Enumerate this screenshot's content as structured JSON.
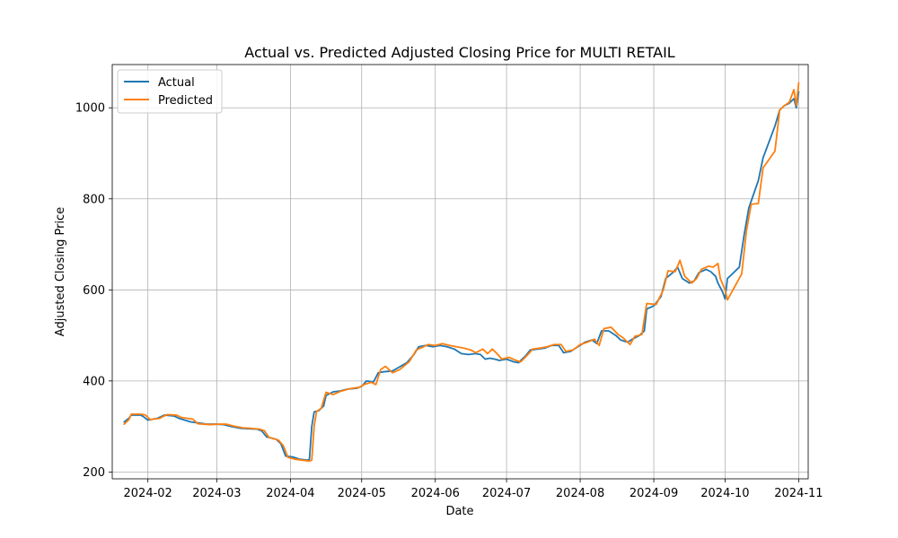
{
  "chart_data": {
    "type": "line",
    "title": "Actual vs. Predicted Adjusted Closing Price for MULTI RETAIL",
    "xlabel": "Date",
    "ylabel": "Adjusted Closing Price",
    "xlim": [
      "2024-01-17",
      "2024-11-05"
    ],
    "ylim": [
      185,
      1095
    ],
    "xticks": [
      "2024-02-01",
      "2024-03-01",
      "2024-04-01",
      "2024-05-01",
      "2024-06-01",
      "2024-07-01",
      "2024-08-01",
      "2024-09-01",
      "2024-10-01",
      "2024-11-01"
    ],
    "xtick_labels": [
      "2024-02",
      "2024-03",
      "2024-04",
      "2024-05",
      "2024-06",
      "2024-07",
      "2024-08",
      "2024-09",
      "2024-10",
      "2024-11"
    ],
    "yticks": [
      200,
      400,
      600,
      800,
      1000
    ],
    "grid": true,
    "legend_position": "top-left",
    "series": [
      {
        "name": "Actual",
        "color": "#1f77b4",
        "points": [
          [
            "2024-01-22",
            310
          ],
          [
            "2024-01-24",
            318
          ],
          [
            "2024-01-25",
            325
          ],
          [
            "2024-01-29",
            325
          ],
          [
            "2024-01-30",
            322
          ],
          [
            "2024-02-01",
            314
          ],
          [
            "2024-02-05",
            318
          ],
          [
            "2024-02-08",
            325
          ],
          [
            "2024-02-12",
            323
          ],
          [
            "2024-02-14",
            318
          ],
          [
            "2024-02-19",
            310
          ],
          [
            "2024-02-22",
            308
          ],
          [
            "2024-02-26",
            305
          ],
          [
            "2024-03-01",
            305
          ],
          [
            "2024-03-04",
            304
          ],
          [
            "2024-03-07",
            300
          ],
          [
            "2024-03-11",
            296
          ],
          [
            "2024-03-14",
            295
          ],
          [
            "2024-03-18",
            294
          ],
          [
            "2024-03-20",
            290
          ],
          [
            "2024-03-22",
            277
          ],
          [
            "2024-03-26",
            272
          ],
          [
            "2024-03-28",
            262
          ],
          [
            "2024-03-30",
            235
          ],
          [
            "2024-04-02",
            233
          ],
          [
            "2024-04-05",
            228
          ],
          [
            "2024-04-08",
            226
          ],
          [
            "2024-04-09",
            227
          ],
          [
            "2024-04-10",
            300
          ],
          [
            "2024-04-11",
            332
          ],
          [
            "2024-04-13",
            335
          ],
          [
            "2024-04-15",
            345
          ],
          [
            "2024-04-16",
            368
          ],
          [
            "2024-04-19",
            376
          ],
          [
            "2024-04-22",
            378
          ],
          [
            "2024-04-25",
            382
          ],
          [
            "2024-04-29",
            384
          ],
          [
            "2024-05-01",
            388
          ],
          [
            "2024-05-03",
            400
          ],
          [
            "2024-05-06",
            398
          ],
          [
            "2024-05-08",
            418
          ],
          [
            "2024-05-10",
            420
          ],
          [
            "2024-05-14",
            422
          ],
          [
            "2024-05-16",
            428
          ],
          [
            "2024-05-20",
            440
          ],
          [
            "2024-05-23",
            458
          ],
          [
            "2024-05-25",
            475
          ],
          [
            "2024-05-28",
            478
          ],
          [
            "2024-05-31",
            475
          ],
          [
            "2024-06-03",
            478
          ],
          [
            "2024-06-06",
            475
          ],
          [
            "2024-06-09",
            470
          ],
          [
            "2024-06-12",
            460
          ],
          [
            "2024-06-15",
            458
          ],
          [
            "2024-06-18",
            460
          ],
          [
            "2024-06-20",
            458
          ],
          [
            "2024-06-22",
            448
          ],
          [
            "2024-06-24",
            450
          ],
          [
            "2024-06-26",
            448
          ],
          [
            "2024-06-28",
            445
          ],
          [
            "2024-07-01",
            448
          ],
          [
            "2024-07-04",
            442
          ],
          [
            "2024-07-06",
            440
          ],
          [
            "2024-07-09",
            455
          ],
          [
            "2024-07-11",
            468
          ],
          [
            "2024-07-14",
            470
          ],
          [
            "2024-07-17",
            472
          ],
          [
            "2024-07-20",
            478
          ],
          [
            "2024-07-23",
            478
          ],
          [
            "2024-07-25",
            462
          ],
          [
            "2024-07-28",
            465
          ],
          [
            "2024-07-31",
            475
          ],
          [
            "2024-08-03",
            485
          ],
          [
            "2024-08-06",
            490
          ],
          [
            "2024-08-08",
            482
          ],
          [
            "2024-08-10",
            510
          ],
          [
            "2024-08-13",
            510
          ],
          [
            "2024-08-16",
            500
          ],
          [
            "2024-08-18",
            490
          ],
          [
            "2024-08-21",
            485
          ],
          [
            "2024-08-23",
            492
          ],
          [
            "2024-08-26",
            500
          ],
          [
            "2024-08-28",
            510
          ],
          [
            "2024-08-29",
            558
          ],
          [
            "2024-09-01",
            565
          ],
          [
            "2024-09-04",
            585
          ],
          [
            "2024-09-06",
            625
          ],
          [
            "2024-09-09",
            638
          ],
          [
            "2024-09-11",
            650
          ],
          [
            "2024-09-13",
            625
          ],
          [
            "2024-09-16",
            615
          ],
          [
            "2024-09-18",
            620
          ],
          [
            "2024-09-20",
            638
          ],
          [
            "2024-09-23",
            645
          ],
          [
            "2024-09-25",
            640
          ],
          [
            "2024-09-27",
            630
          ],
          [
            "2024-09-28",
            615
          ],
          [
            "2024-09-30",
            595
          ],
          [
            "2024-10-01",
            580
          ],
          [
            "2024-10-02",
            625
          ],
          [
            "2024-10-07",
            650
          ],
          [
            "2024-10-09",
            720
          ],
          [
            "2024-10-11",
            780
          ],
          [
            "2024-10-15",
            840
          ],
          [
            "2024-10-17",
            890
          ],
          [
            "2024-10-22",
            960
          ],
          [
            "2024-10-24",
            995
          ],
          [
            "2024-10-26",
            1005
          ],
          [
            "2024-10-28",
            1010
          ],
          [
            "2024-10-30",
            1020
          ],
          [
            "2024-10-31",
            1000
          ],
          [
            "2024-11-01",
            1035
          ]
        ]
      },
      {
        "name": "Predicted",
        "color": "#ff7f0e",
        "points": [
          [
            "2024-01-22",
            305
          ],
          [
            "2024-01-24",
            315
          ],
          [
            "2024-01-25",
            327
          ],
          [
            "2024-01-29",
            327
          ],
          [
            "2024-01-31",
            325
          ],
          [
            "2024-02-02",
            315
          ],
          [
            "2024-02-06",
            318
          ],
          [
            "2024-02-09",
            326
          ],
          [
            "2024-02-13",
            325
          ],
          [
            "2024-02-15",
            320
          ],
          [
            "2024-02-20",
            316
          ],
          [
            "2024-02-22",
            306
          ],
          [
            "2024-02-27",
            304
          ],
          [
            "2024-03-02",
            305
          ],
          [
            "2024-03-05",
            305
          ],
          [
            "2024-03-08",
            301
          ],
          [
            "2024-03-12",
            297
          ],
          [
            "2024-03-15",
            296
          ],
          [
            "2024-03-19",
            294
          ],
          [
            "2024-03-21",
            291
          ],
          [
            "2024-03-23",
            276
          ],
          [
            "2024-03-27",
            270
          ],
          [
            "2024-03-29",
            258
          ],
          [
            "2024-03-31",
            232
          ],
          [
            "2024-04-03",
            228
          ],
          [
            "2024-04-06",
            226
          ],
          [
            "2024-04-09",
            224
          ],
          [
            "2024-04-10",
            226
          ],
          [
            "2024-04-11",
            300
          ],
          [
            "2024-04-12",
            333
          ],
          [
            "2024-04-14",
            340
          ],
          [
            "2024-04-16",
            375
          ],
          [
            "2024-04-19",
            370
          ],
          [
            "2024-04-22",
            377
          ],
          [
            "2024-04-26",
            383
          ],
          [
            "2024-04-30",
            386
          ],
          [
            "2024-05-02",
            392
          ],
          [
            "2024-05-05",
            397
          ],
          [
            "2024-05-07",
            392
          ],
          [
            "2024-05-09",
            425
          ],
          [
            "2024-05-11",
            432
          ],
          [
            "2024-05-14",
            418
          ],
          [
            "2024-05-17",
            425
          ],
          [
            "2024-05-21",
            442
          ],
          [
            "2024-05-24",
            468
          ],
          [
            "2024-05-27",
            475
          ],
          [
            "2024-05-29",
            480
          ],
          [
            "2024-06-01",
            478
          ],
          [
            "2024-06-04",
            482
          ],
          [
            "2024-06-07",
            478
          ],
          [
            "2024-06-10",
            475
          ],
          [
            "2024-06-13",
            472
          ],
          [
            "2024-06-16",
            468
          ],
          [
            "2024-06-18",
            462
          ],
          [
            "2024-06-21",
            470
          ],
          [
            "2024-06-23",
            460
          ],
          [
            "2024-06-25",
            470
          ],
          [
            "2024-06-27",
            460
          ],
          [
            "2024-06-29",
            448
          ],
          [
            "2024-07-02",
            452
          ],
          [
            "2024-07-05",
            445
          ],
          [
            "2024-07-07",
            442
          ],
          [
            "2024-07-10",
            458
          ],
          [
            "2024-07-12",
            470
          ],
          [
            "2024-07-15",
            472
          ],
          [
            "2024-07-18",
            475
          ],
          [
            "2024-07-21",
            480
          ],
          [
            "2024-07-24",
            480
          ],
          [
            "2024-07-26",
            465
          ],
          [
            "2024-07-29",
            468
          ],
          [
            "2024-08-01",
            480
          ],
          [
            "2024-08-04",
            485
          ],
          [
            "2024-08-07",
            492
          ],
          [
            "2024-08-09",
            478
          ],
          [
            "2024-08-11",
            515
          ],
          [
            "2024-08-14",
            518
          ],
          [
            "2024-08-17",
            502
          ],
          [
            "2024-08-19",
            495
          ],
          [
            "2024-08-22",
            480
          ],
          [
            "2024-08-24",
            498
          ],
          [
            "2024-08-27",
            502
          ],
          [
            "2024-08-29",
            570
          ],
          [
            "2024-09-02",
            568
          ],
          [
            "2024-09-05",
            600
          ],
          [
            "2024-09-07",
            642
          ],
          [
            "2024-09-10",
            640
          ],
          [
            "2024-09-12",
            665
          ],
          [
            "2024-09-14",
            630
          ],
          [
            "2024-09-17",
            615
          ],
          [
            "2024-09-19",
            625
          ],
          [
            "2024-09-21",
            645
          ],
          [
            "2024-09-24",
            652
          ],
          [
            "2024-09-26",
            650
          ],
          [
            "2024-09-28",
            658
          ],
          [
            "2024-09-29",
            625
          ],
          [
            "2024-10-01",
            600
          ],
          [
            "2024-10-02",
            578
          ],
          [
            "2024-10-08",
            635
          ],
          [
            "2024-10-10",
            730
          ],
          [
            "2024-10-12",
            788
          ],
          [
            "2024-10-15",
            790
          ],
          [
            "2024-10-17",
            868
          ],
          [
            "2024-10-22",
            905
          ],
          [
            "2024-10-24",
            995
          ],
          [
            "2024-10-26",
            1005
          ],
          [
            "2024-10-28",
            1012
          ],
          [
            "2024-10-30",
            1040
          ],
          [
            "2024-10-31",
            1005
          ],
          [
            "2024-11-01",
            1055
          ]
        ]
      }
    ]
  }
}
